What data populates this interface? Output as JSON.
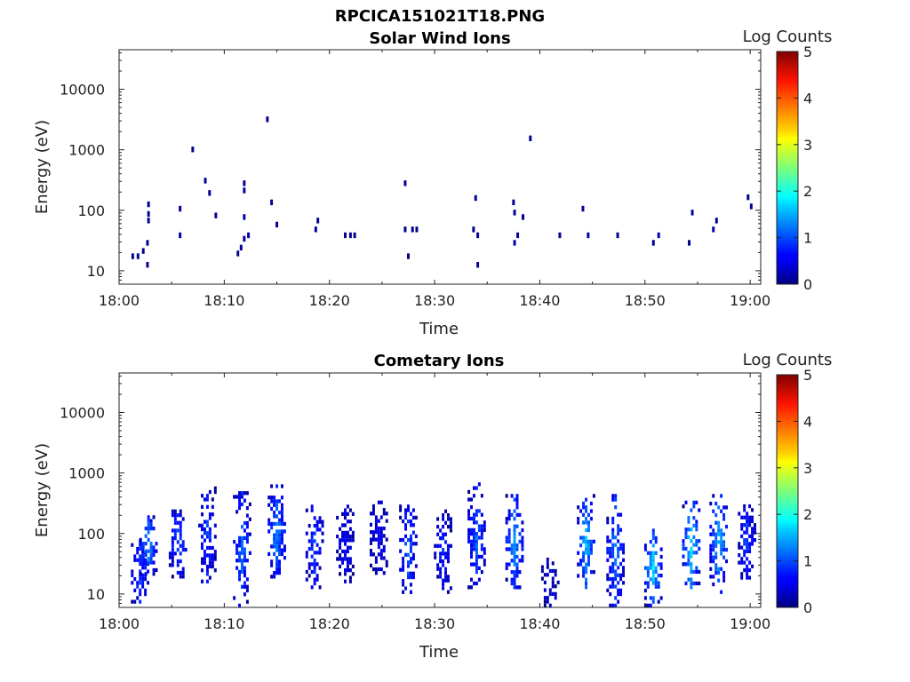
{
  "figure_title": "RPCICA151021T18.PNG",
  "chart_data": [
    {
      "type": "heatmap",
      "title": "Solar Wind Ions",
      "xlabel": "Time",
      "ylabel": "Energy (eV)",
      "y_scale": "log",
      "ylim": [
        6,
        45000
      ],
      "xlim": [
        "18:00",
        "19:01"
      ],
      "x_ticks": [
        "18:00",
        "18:10",
        "18:20",
        "18:30",
        "18:40",
        "18:50",
        "19:00"
      ],
      "y_ticks": [
        "10",
        "100",
        "1000",
        "10000"
      ],
      "y_tick_values": [
        10,
        100,
        1000,
        10000
      ],
      "colorbar": {
        "label": "Log Counts",
        "min": 0,
        "max": 5,
        "ticks": [
          "0",
          "1",
          "2",
          "3",
          "4",
          "5"
        ],
        "colormap": "jet"
      },
      "cells": [
        {
          "t": 1.3,
          "e": 18,
          "v": 0.1
        },
        {
          "t": 1.8,
          "e": 18,
          "v": 0.1
        },
        {
          "t": 2.3,
          "e": 22,
          "v": 0.1
        },
        {
          "t": 2.7,
          "e": 13,
          "v": 0.1
        },
        {
          "t": 2.7,
          "e": 30,
          "v": 0.1
        },
        {
          "t": 2.8,
          "e": 70,
          "v": 0.1
        },
        {
          "t": 2.8,
          "e": 90,
          "v": 0.1
        },
        {
          "t": 2.8,
          "e": 130,
          "v": 0.1
        },
        {
          "t": 5.8,
          "e": 40,
          "v": 0.2
        },
        {
          "t": 5.8,
          "e": 110,
          "v": 0.1
        },
        {
          "t": 7.0,
          "e": 1050,
          "v": 0.1
        },
        {
          "t": 8.2,
          "e": 320,
          "v": 0.1
        },
        {
          "t": 8.6,
          "e": 200,
          "v": 0.1
        },
        {
          "t": 9.2,
          "e": 85,
          "v": 0.1
        },
        {
          "t": 11.3,
          "e": 20,
          "v": 0.1
        },
        {
          "t": 11.6,
          "e": 25,
          "v": 0.1
        },
        {
          "t": 11.9,
          "e": 35,
          "v": 0.1
        },
        {
          "t": 11.9,
          "e": 80,
          "v": 0.2
        },
        {
          "t": 11.9,
          "e": 220,
          "v": 0.1
        },
        {
          "t": 11.9,
          "e": 290,
          "v": 0.1
        },
        {
          "t": 12.3,
          "e": 40,
          "v": 0.2
        },
        {
          "t": 14.1,
          "e": 3300,
          "v": 0.1
        },
        {
          "t": 14.5,
          "e": 140,
          "v": 0.1
        },
        {
          "t": 15.0,
          "e": 60,
          "v": 0.1
        },
        {
          "t": 18.7,
          "e": 50,
          "v": 0.2
        },
        {
          "t": 18.9,
          "e": 70,
          "v": 0.1
        },
        {
          "t": 21.5,
          "e": 40,
          "v": 0.1
        },
        {
          "t": 22.0,
          "e": 40,
          "v": 0.1
        },
        {
          "t": 22.4,
          "e": 40,
          "v": 0.1
        },
        {
          "t": 27.2,
          "e": 290,
          "v": 0.1
        },
        {
          "t": 27.2,
          "e": 50,
          "v": 0.1
        },
        {
          "t": 27.5,
          "e": 18,
          "v": 0.1
        },
        {
          "t": 27.9,
          "e": 50,
          "v": 0.1
        },
        {
          "t": 28.3,
          "e": 50,
          "v": 0.1
        },
        {
          "t": 33.7,
          "e": 50,
          "v": 0.1
        },
        {
          "t": 33.9,
          "e": 165,
          "v": 0.1
        },
        {
          "t": 34.1,
          "e": 40,
          "v": 0.1
        },
        {
          "t": 34.1,
          "e": 13,
          "v": 0.1
        },
        {
          "t": 37.5,
          "e": 140,
          "v": 0.1
        },
        {
          "t": 37.6,
          "e": 30,
          "v": 0.2
        },
        {
          "t": 37.6,
          "e": 95,
          "v": 0.1
        },
        {
          "t": 37.9,
          "e": 40,
          "v": 0.1
        },
        {
          "t": 38.4,
          "e": 80,
          "v": 0.1
        },
        {
          "t": 39.1,
          "e": 1600,
          "v": 0.1
        },
        {
          "t": 41.9,
          "e": 40,
          "v": 0.1
        },
        {
          "t": 44.1,
          "e": 110,
          "v": 0.1
        },
        {
          "t": 44.6,
          "e": 40,
          "v": 0.2
        },
        {
          "t": 47.4,
          "e": 40,
          "v": 0.1
        },
        {
          "t": 50.8,
          "e": 30,
          "v": 0.1
        },
        {
          "t": 51.3,
          "e": 40,
          "v": 0.2
        },
        {
          "t": 54.2,
          "e": 30,
          "v": 0.1
        },
        {
          "t": 54.5,
          "e": 95,
          "v": 0.1
        },
        {
          "t": 56.5,
          "e": 50,
          "v": 0.2
        },
        {
          "t": 56.8,
          "e": 70,
          "v": 0.1
        },
        {
          "t": 59.8,
          "e": 170,
          "v": 0.1
        },
        {
          "t": 60.1,
          "e": 120,
          "v": 0.1
        }
      ]
    },
    {
      "type": "heatmap",
      "title": "Cometary Ions",
      "xlabel": "Time",
      "ylabel": "Energy (eV)",
      "y_scale": "log",
      "ylim": [
        6,
        45000
      ],
      "xlim": [
        "18:00",
        "19:01"
      ],
      "x_ticks": [
        "18:00",
        "18:10",
        "18:20",
        "18:30",
        "18:40",
        "18:50",
        "19:00"
      ],
      "y_ticks": [
        "10",
        "100",
        "1000",
        "10000"
      ],
      "y_tick_values": [
        10,
        100,
        1000,
        10000
      ],
      "colorbar": {
        "label": "Log Counts",
        "min": 0,
        "max": 5,
        "ticks": [
          "0",
          "1",
          "2",
          "3",
          "4",
          "5"
        ],
        "colormap": "jet"
      },
      "bursts": [
        {
          "t": 2.0,
          "emin": 6,
          "emax": 80,
          "peak": 1.0
        },
        {
          "t": 2.8,
          "emin": 20,
          "emax": 200,
          "peak": 1.3
        },
        {
          "t": 5.6,
          "emin": 18,
          "emax": 250,
          "peak": 1.0
        },
        {
          "t": 8.4,
          "emin": 15,
          "emax": 600,
          "peak": 0.9
        },
        {
          "t": 11.7,
          "emin": 6,
          "emax": 500,
          "peak": 1.1
        },
        {
          "t": 15.0,
          "emin": 18,
          "emax": 650,
          "peak": 1.3
        },
        {
          "t": 18.6,
          "emin": 12,
          "emax": 300,
          "peak": 0.9
        },
        {
          "t": 21.5,
          "emin": 15,
          "emax": 300,
          "peak": 0.6
        },
        {
          "t": 24.7,
          "emin": 18,
          "emax": 350,
          "peak": 0.6
        },
        {
          "t": 27.5,
          "emin": 10,
          "emax": 300,
          "peak": 1.1
        },
        {
          "t": 30.8,
          "emin": 10,
          "emax": 250,
          "peak": 0.8
        },
        {
          "t": 34.0,
          "emin": 12,
          "emax": 700,
          "peak": 1.1
        },
        {
          "t": 37.6,
          "emin": 12,
          "emax": 450,
          "peak": 1.4
        },
        {
          "t": 41.0,
          "emin": 6,
          "emax": 40,
          "peak": 0.5
        },
        {
          "t": 44.4,
          "emin": 12,
          "emax": 450,
          "peak": 1.6
        },
        {
          "t": 47.2,
          "emin": 6,
          "emax": 450,
          "peak": 1.2
        },
        {
          "t": 50.8,
          "emin": 6,
          "emax": 120,
          "peak": 1.7
        },
        {
          "t": 54.4,
          "emin": 12,
          "emax": 350,
          "peak": 1.8
        },
        {
          "t": 57.0,
          "emin": 10,
          "emax": 450,
          "peak": 1.6
        },
        {
          "t": 59.7,
          "emin": 15,
          "emax": 350,
          "peak": 0.9
        }
      ]
    }
  ]
}
